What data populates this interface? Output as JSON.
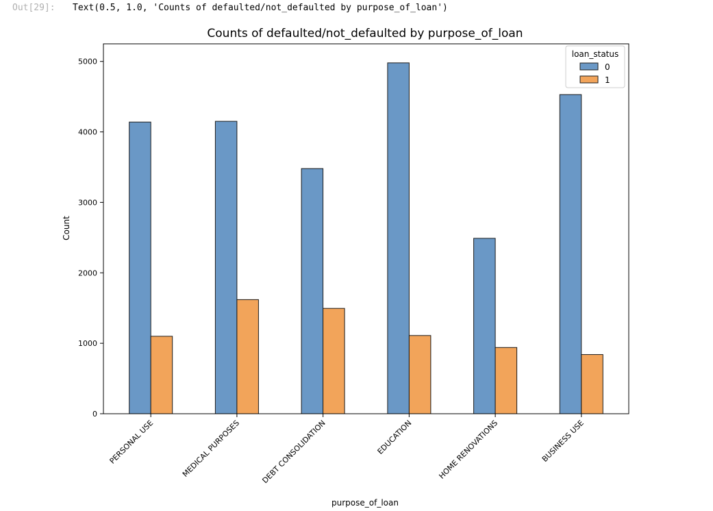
{
  "cell": {
    "prompt": "Out[29]:",
    "output": "Text(0.5, 1.0, 'Counts of defaulted/not_defaulted by purpose_of_loan')"
  },
  "chart_data": {
    "type": "bar",
    "title": "Counts of defaulted/not_defaulted by purpose_of_loan",
    "xlabel": "purpose_of_loan",
    "ylabel": "Count",
    "categories": [
      "PERSONAL USE",
      "MEDICAL PURPOSES",
      "DEBT CONSOLIDATION",
      "EDUCATION",
      "HOME RENOVATIONS",
      "BUSINESS USE"
    ],
    "series": [
      {
        "name": "0",
        "color": "#6a98c6",
        "values": [
          4140,
          4150,
          3480,
          4980,
          2490,
          4530
        ]
      },
      {
        "name": "1",
        "color": "#f2a45a",
        "values": [
          1100,
          1620,
          1495,
          1110,
          940,
          840
        ]
      }
    ],
    "yticks": [
      0,
      1000,
      2000,
      3000,
      4000,
      5000
    ],
    "ylim": [
      0,
      5250
    ],
    "grid": false,
    "legend": {
      "title": "loan_status",
      "placement": "top-right"
    }
  }
}
